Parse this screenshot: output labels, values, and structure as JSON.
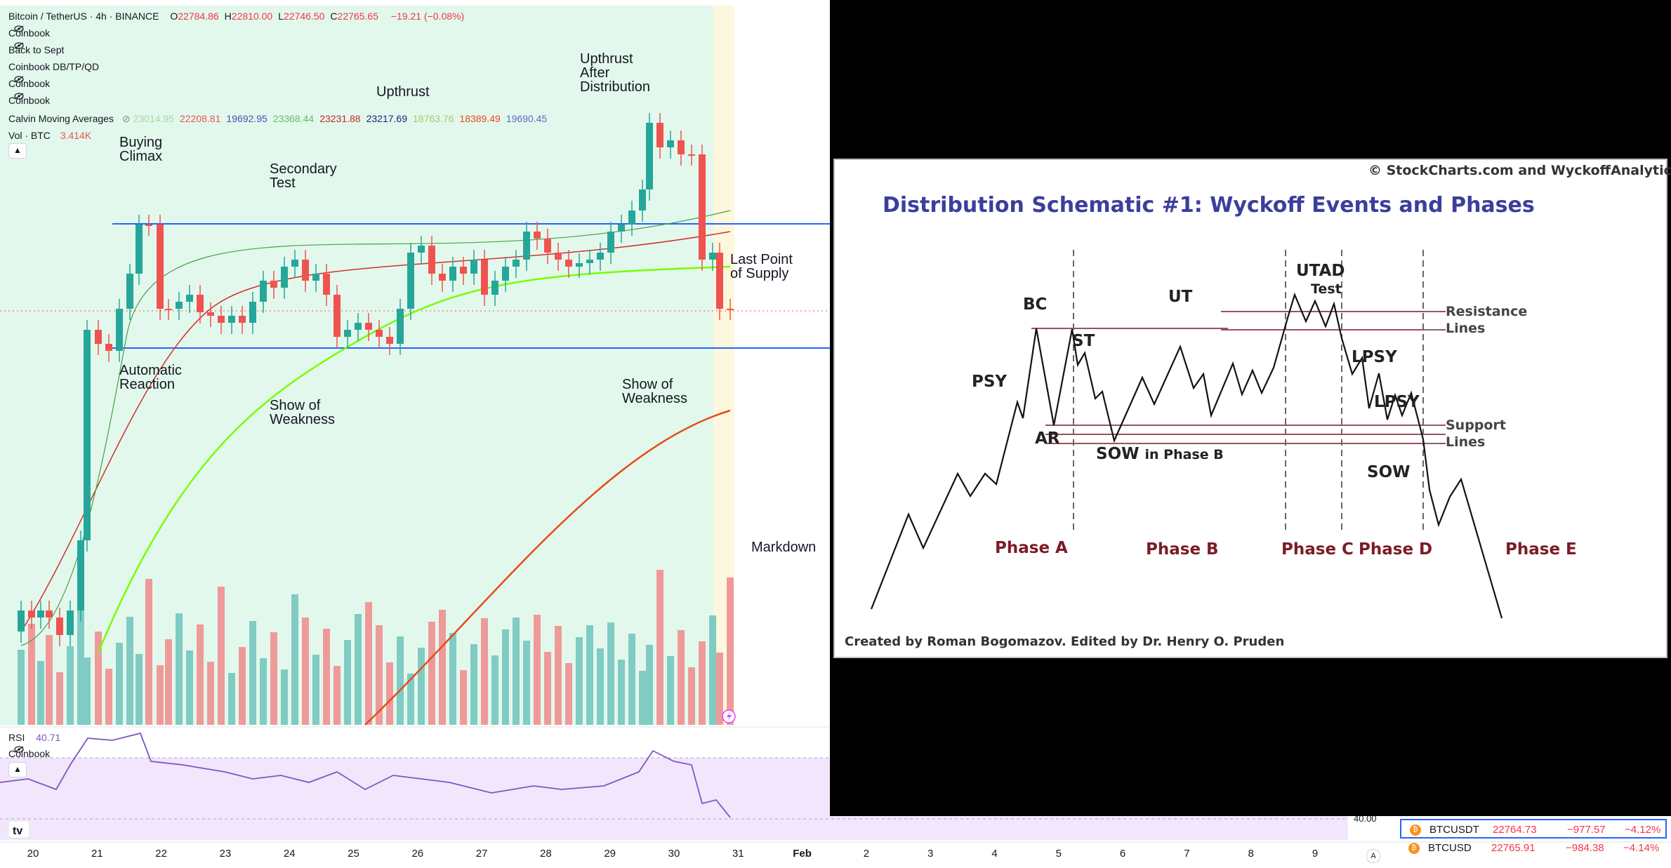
{
  "legend": {
    "symbol": "Bitcoin / TetherUS · 4h · BINANCE",
    "ohlc": [
      {
        "k": "O",
        "v": "22784.86"
      },
      {
        "k": "H",
        "v": "22810.00"
      },
      {
        "k": "L",
        "v": "22746.50"
      },
      {
        "k": "C",
        "v": "22765.65"
      }
    ],
    "change": "−19.21 (−0.08%)",
    "indicators": [
      "Coinbook",
      "Back to Sept",
      "Coinbook DB/TP/QD",
      "Coinbook",
      "Coinbook"
    ],
    "ma_label": "Calvin Moving Averages",
    "ma_values": [
      {
        "v": "23014.95",
        "color": "#a5d6a7"
      },
      {
        "v": "22208.81",
        "color": "#ef5350"
      },
      {
        "v": "19692.95",
        "color": "#3f51b5"
      },
      {
        "v": "23368.44",
        "color": "#66bb6a"
      },
      {
        "v": "23231.88",
        "color": "#c62828"
      },
      {
        "v": "23217.69",
        "color": "#1a237e"
      },
      {
        "v": "18763.76",
        "color": "#9ccc65"
      },
      {
        "v": "18389.49",
        "color": "#e64a19"
      },
      {
        "v": "19690.45",
        "color": "#5c6bc0"
      }
    ],
    "vol_label": "Vol · BTC",
    "vol_value": "3.414K",
    "rsi_label": "RSI",
    "rsi_value": "40.71",
    "rsi_sub": "Coinbook"
  },
  "annotations": {
    "buying_climax": "Buying\nClimax",
    "secondary_test": "Secondary\nTest",
    "upthrust": "Upthrust",
    "utad": "Upthrust\nAfter\nDistribution",
    "lps": "Last Point\nof Supply",
    "automatic_reaction": "Automatic\nReaction",
    "sow1": "Show of\nWeakness",
    "sow2": "Show of\nWeakness",
    "markdown": "Markdown"
  },
  "x_axis": [
    "20",
    "21",
    "22",
    "23",
    "24",
    "25",
    "26",
    "27",
    "28",
    "29",
    "30",
    "31",
    "Feb",
    "2",
    "3",
    "4",
    "5",
    "6",
    "7",
    "8",
    "9"
  ],
  "rsi_scale_label": "40.00",
  "schematic": {
    "copyright": "© StockCharts.com and WyckoffAnalytics.com",
    "title": "Distribution Schematic #1: Wyckoff Events and Phases",
    "events": {
      "psy": "PSY",
      "bc": "BC",
      "ar": "AR",
      "st": "ST",
      "ut": "UT",
      "sow_b": "SOW",
      "sow_b_suffix": "in Phase B",
      "utad": "UTAD",
      "test": "Test",
      "lpsy1": "LPSY",
      "lpsy2": "LPSY",
      "sow": "SOW"
    },
    "resistance": "Resistance\nLines",
    "support": "Support\nLines",
    "phases": [
      "Phase A",
      "Phase B",
      "Phase C",
      "Phase D",
      "Phase E"
    ],
    "credit": "Created by Roman Bogomazov. Edited by Dr. Henry O. Pruden"
  },
  "watchlist": [
    {
      "symbol": "BTCUSDT",
      "last": "22764.73",
      "chg": "−977.57",
      "pct": "−4.12%",
      "selected": true
    },
    {
      "symbol": "BTCUSD",
      "last": "22765.91",
      "chg": "−984.38",
      "pct": "−4.14%",
      "selected": false
    }
  ],
  "colors": {
    "up": "#26a69a",
    "down": "#ef5350",
    "phase_bg": "#e3f8ec",
    "rsi_bg": "#f1e6fb",
    "rsi_line": "#7e57c2",
    "range_line": "#2962ff"
  }
}
